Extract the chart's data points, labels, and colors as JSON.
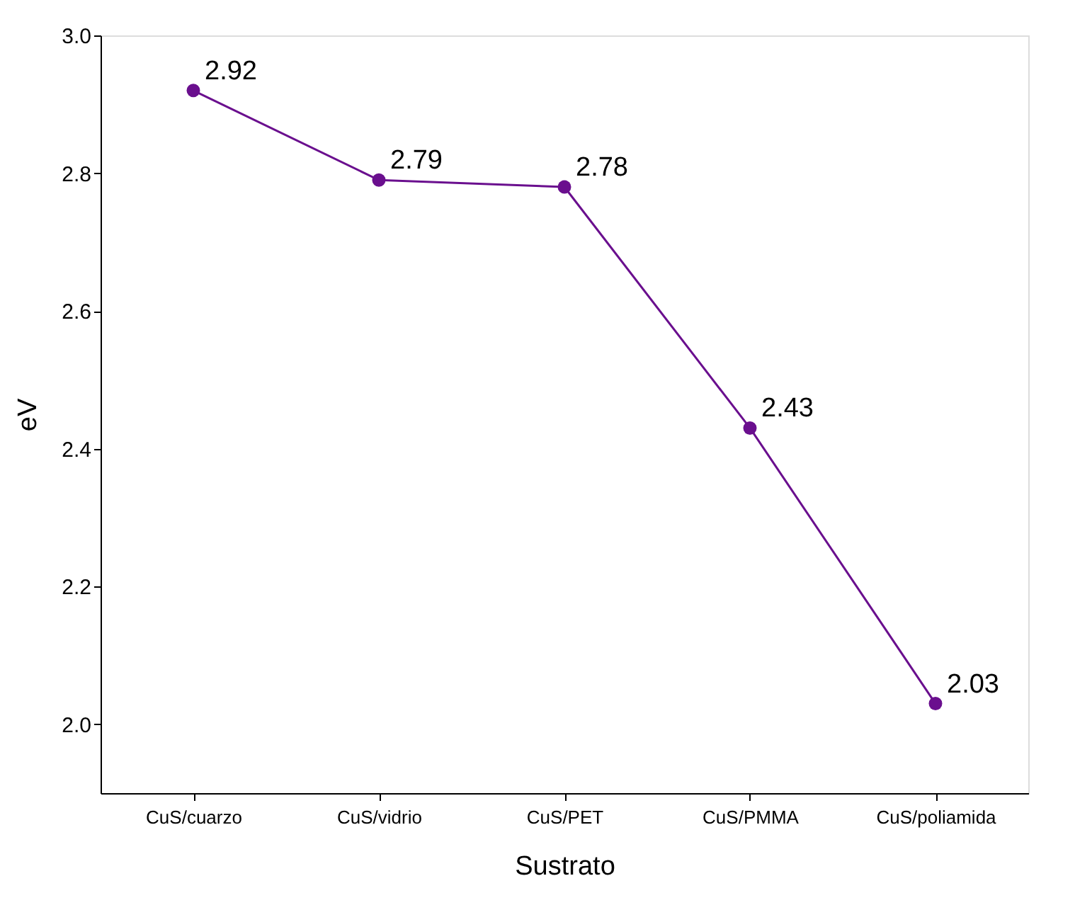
{
  "chart_data": {
    "type": "line",
    "xlabel": "Sustrato",
    "ylabel": "eV",
    "categories": [
      "CuS/cuarzo",
      "CuS/vidrio",
      "CuS/PET",
      "CuS/PMMA",
      "CuS/poliamida"
    ],
    "series": [
      {
        "color": "#6a0f8e",
        "values": [
          2.92,
          2.79,
          2.78,
          2.43,
          2.03
        ]
      }
    ],
    "ylim": [
      1.9,
      3.0
    ],
    "yticks": [
      {
        "value": 2,
        "label": "2.0"
      },
      2.2,
      2.4,
      2.6,
      2.8,
      {
        "value": 3,
        "label": "3.0"
      }
    ],
    "data_labels": true,
    "marker": "circle",
    "grid": false,
    "legend": false,
    "line_style": "solid"
  }
}
